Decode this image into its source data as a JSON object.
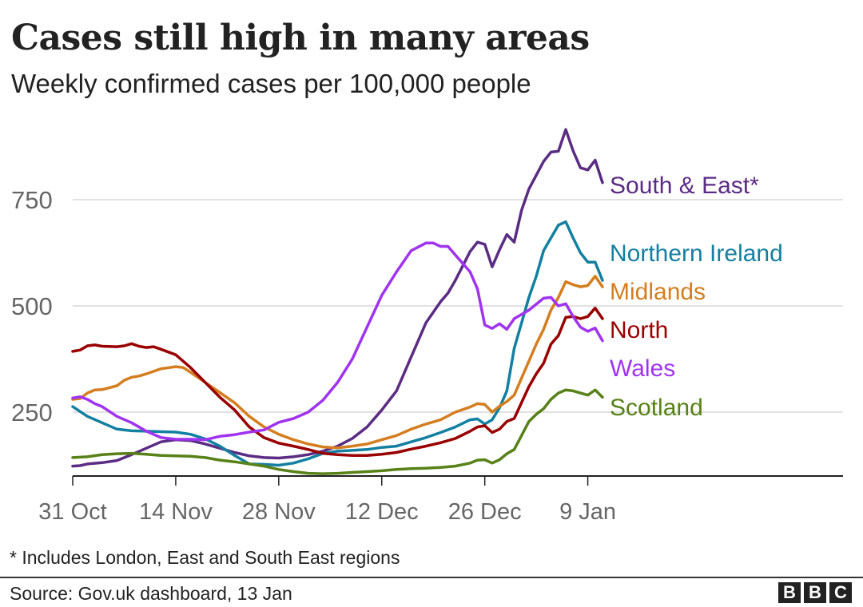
{
  "chart_data": {
    "type": "line",
    "title": "Cases still high in many areas",
    "subtitle": "Weekly confirmed cases per 100,000 people",
    "ylabel": "",
    "xlabel": "",
    "ylim": [
      100,
      950
    ],
    "yticks": [
      250,
      500,
      750
    ],
    "ytick_labels": [
      "250",
      "500",
      "750"
    ],
    "x_range": [
      0,
      73
    ],
    "xticks": [
      0,
      14,
      28,
      42,
      56,
      70
    ],
    "xtick_labels": [
      "31 Oct",
      "14 Nov",
      "28 Nov",
      "12 Dec",
      "26 Dec",
      "9 Jan"
    ],
    "grid": "horizontal",
    "series": [
      {
        "name": "South & East*",
        "label": "South & East*",
        "color": "#5b2c83",
        "points": [
          [
            0,
            123
          ],
          [
            1,
            124
          ],
          [
            2,
            128
          ],
          [
            4,
            131
          ],
          [
            6,
            136
          ],
          [
            8,
            150
          ],
          [
            10,
            165
          ],
          [
            12,
            180
          ],
          [
            14,
            185
          ],
          [
            16,
            183
          ],
          [
            18,
            175
          ],
          [
            20,
            165
          ],
          [
            22,
            155
          ],
          [
            24,
            147
          ],
          [
            26,
            143
          ],
          [
            28,
            142
          ],
          [
            30,
            145
          ],
          [
            32,
            150
          ],
          [
            34,
            158
          ],
          [
            36,
            170
          ],
          [
            38,
            188
          ],
          [
            40,
            215
          ],
          [
            42,
            255
          ],
          [
            44,
            300
          ],
          [
            46,
            380
          ],
          [
            48,
            460
          ],
          [
            50,
            510
          ],
          [
            51,
            530
          ],
          [
            52,
            560
          ],
          [
            54,
            628
          ],
          [
            55,
            650
          ],
          [
            56,
            645
          ],
          [
            57,
            592
          ],
          [
            58,
            632
          ],
          [
            59,
            668
          ],
          [
            60,
            650
          ],
          [
            61,
            725
          ],
          [
            62,
            775
          ],
          [
            64,
            840
          ],
          [
            65,
            862
          ],
          [
            66,
            864
          ],
          [
            67,
            915
          ],
          [
            68,
            865
          ],
          [
            69,
            825
          ],
          [
            70,
            820
          ],
          [
            71,
            843
          ],
          [
            72,
            790
          ]
        ]
      },
      {
        "name": "Northern Ireland",
        "label": "Northern Ireland",
        "color": "#1380a1",
        "points": [
          [
            0,
            263
          ],
          [
            2,
            240
          ],
          [
            4,
            225
          ],
          [
            6,
            210
          ],
          [
            8,
            206
          ],
          [
            10,
            205
          ],
          [
            12,
            204
          ],
          [
            14,
            203
          ],
          [
            16,
            198
          ],
          [
            18,
            187
          ],
          [
            20,
            170
          ],
          [
            22,
            148
          ],
          [
            24,
            128
          ],
          [
            26,
            127
          ],
          [
            28,
            125
          ],
          [
            30,
            130
          ],
          [
            32,
            140
          ],
          [
            34,
            153
          ],
          [
            36,
            158
          ],
          [
            38,
            160
          ],
          [
            40,
            162
          ],
          [
            42,
            167
          ],
          [
            44,
            170
          ],
          [
            46,
            180
          ],
          [
            48,
            190
          ],
          [
            50,
            202
          ],
          [
            52,
            215
          ],
          [
            54,
            232
          ],
          [
            55,
            234
          ],
          [
            56,
            222
          ],
          [
            57,
            232
          ],
          [
            58,
            260
          ],
          [
            59,
            300
          ],
          [
            60,
            400
          ],
          [
            62,
            520
          ],
          [
            63,
            570
          ],
          [
            64,
            630
          ],
          [
            65,
            660
          ],
          [
            66,
            690
          ],
          [
            67,
            698
          ],
          [
            68,
            660
          ],
          [
            69,
            625
          ],
          [
            70,
            603
          ],
          [
            71,
            603
          ],
          [
            72,
            560
          ]
        ]
      },
      {
        "name": "Midlands",
        "label": "Midlands",
        "color": "#d47e1f",
        "points": [
          [
            0,
            280
          ],
          [
            1,
            282
          ],
          [
            2,
            295
          ],
          [
            3,
            302
          ],
          [
            4,
            303
          ],
          [
            6,
            312
          ],
          [
            7,
            325
          ],
          [
            8,
            332
          ],
          [
            9,
            335
          ],
          [
            10,
            340
          ],
          [
            12,
            352
          ],
          [
            14,
            357
          ],
          [
            15,
            355
          ],
          [
            16,
            344
          ],
          [
            18,
            320
          ],
          [
            20,
            296
          ],
          [
            22,
            272
          ],
          [
            24,
            240
          ],
          [
            26,
            215
          ],
          [
            28,
            198
          ],
          [
            30,
            185
          ],
          [
            32,
            175
          ],
          [
            34,
            168
          ],
          [
            36,
            166
          ],
          [
            38,
            170
          ],
          [
            40,
            175
          ],
          [
            42,
            185
          ],
          [
            44,
            195
          ],
          [
            46,
            210
          ],
          [
            48,
            222
          ],
          [
            50,
            232
          ],
          [
            52,
            250
          ],
          [
            54,
            262
          ],
          [
            55,
            270
          ],
          [
            56,
            268
          ],
          [
            57,
            250
          ],
          [
            58,
            264
          ],
          [
            59,
            275
          ],
          [
            60,
            290
          ],
          [
            62,
            370
          ],
          [
            63,
            410
          ],
          [
            64,
            445
          ],
          [
            65,
            490
          ],
          [
            66,
            520
          ],
          [
            67,
            557
          ],
          [
            68,
            550
          ],
          [
            69,
            545
          ],
          [
            70,
            548
          ],
          [
            71,
            570
          ],
          [
            72,
            545
          ]
        ]
      },
      {
        "name": "North",
        "label": "North",
        "color": "#990000",
        "points": [
          [
            0,
            393
          ],
          [
            1,
            396
          ],
          [
            2,
            406
          ],
          [
            3,
            408
          ],
          [
            4,
            405
          ],
          [
            6,
            404
          ],
          [
            7,
            406
          ],
          [
            8,
            411
          ],
          [
            9,
            405
          ],
          [
            10,
            402
          ],
          [
            11,
            404
          ],
          [
            12,
            398
          ],
          [
            14,
            385
          ],
          [
            16,
            355
          ],
          [
            18,
            320
          ],
          [
            20,
            285
          ],
          [
            22,
            255
          ],
          [
            24,
            215
          ],
          [
            26,
            190
          ],
          [
            28,
            177
          ],
          [
            30,
            170
          ],
          [
            32,
            162
          ],
          [
            34,
            153
          ],
          [
            36,
            150
          ],
          [
            38,
            148
          ],
          [
            40,
            148
          ],
          [
            42,
            151
          ],
          [
            44,
            155
          ],
          [
            46,
            163
          ],
          [
            48,
            170
          ],
          [
            50,
            178
          ],
          [
            52,
            188
          ],
          [
            54,
            205
          ],
          [
            55,
            215
          ],
          [
            56,
            218
          ],
          [
            57,
            202
          ],
          [
            58,
            210
          ],
          [
            59,
            228
          ],
          [
            60,
            235
          ],
          [
            62,
            310
          ],
          [
            63,
            340
          ],
          [
            64,
            365
          ],
          [
            65,
            410
          ],
          [
            66,
            430
          ],
          [
            67,
            473
          ],
          [
            68,
            475
          ],
          [
            69,
            470
          ],
          [
            70,
            475
          ],
          [
            71,
            495
          ],
          [
            72,
            470
          ]
        ]
      },
      {
        "name": "Wales",
        "label": "Wales",
        "color": "#a034f0",
        "points": [
          [
            0,
            283
          ],
          [
            1,
            286
          ],
          [
            2,
            280
          ],
          [
            3,
            270
          ],
          [
            4,
            263
          ],
          [
            6,
            240
          ],
          [
            8,
            225
          ],
          [
            10,
            205
          ],
          [
            12,
            190
          ],
          [
            14,
            186
          ],
          [
            16,
            186
          ],
          [
            18,
            185
          ],
          [
            20,
            193
          ],
          [
            22,
            197
          ],
          [
            24,
            203
          ],
          [
            26,
            208
          ],
          [
            28,
            226
          ],
          [
            30,
            235
          ],
          [
            32,
            250
          ],
          [
            34,
            278
          ],
          [
            36,
            320
          ],
          [
            38,
            375
          ],
          [
            40,
            450
          ],
          [
            42,
            525
          ],
          [
            44,
            580
          ],
          [
            46,
            630
          ],
          [
            48,
            648
          ],
          [
            49,
            648
          ],
          [
            50,
            640
          ],
          [
            51,
            640
          ],
          [
            52,
            620
          ],
          [
            54,
            580
          ],
          [
            55,
            540
          ],
          [
            56,
            455
          ],
          [
            57,
            447
          ],
          [
            58,
            458
          ],
          [
            59,
            445
          ],
          [
            60,
            470
          ],
          [
            62,
            490
          ],
          [
            64,
            518
          ],
          [
            65,
            520
          ],
          [
            66,
            500
          ],
          [
            67,
            505
          ],
          [
            68,
            475
          ],
          [
            69,
            450
          ],
          [
            70,
            440
          ],
          [
            71,
            448
          ],
          [
            72,
            418
          ]
        ]
      },
      {
        "name": "Scotland",
        "label": "Scotland",
        "color": "#588118",
        "points": [
          [
            0,
            143
          ],
          [
            2,
            145
          ],
          [
            4,
            150
          ],
          [
            6,
            152
          ],
          [
            8,
            153
          ],
          [
            10,
            151
          ],
          [
            12,
            148
          ],
          [
            14,
            147
          ],
          [
            16,
            146
          ],
          [
            18,
            143
          ],
          [
            20,
            137
          ],
          [
            22,
            133
          ],
          [
            24,
            128
          ],
          [
            26,
            123
          ],
          [
            28,
            115
          ],
          [
            30,
            110
          ],
          [
            32,
            106
          ],
          [
            34,
            105
          ],
          [
            36,
            106
          ],
          [
            38,
            108
          ],
          [
            40,
            110
          ],
          [
            42,
            112
          ],
          [
            44,
            115
          ],
          [
            46,
            117
          ],
          [
            48,
            118
          ],
          [
            50,
            120
          ],
          [
            52,
            123
          ],
          [
            54,
            130
          ],
          [
            55,
            137
          ],
          [
            56,
            138
          ],
          [
            57,
            130
          ],
          [
            58,
            138
          ],
          [
            59,
            152
          ],
          [
            60,
            162
          ],
          [
            61,
            195
          ],
          [
            62,
            228
          ],
          [
            63,
            245
          ],
          [
            64,
            258
          ],
          [
            65,
            280
          ],
          [
            66,
            295
          ],
          [
            67,
            302
          ],
          [
            68,
            300
          ],
          [
            69,
            295
          ],
          [
            70,
            290
          ],
          [
            71,
            302
          ],
          [
            72,
            285
          ]
        ]
      }
    ],
    "footnote": "* Includes London, East and South East regions",
    "source": "Source: Gov.uk dashboard, 13 Jan"
  },
  "brand": {
    "letters": [
      "B",
      "B",
      "C"
    ]
  },
  "colors": {
    "text": "#222222",
    "axis_text": "#666666",
    "grid": "#d9d9d9",
    "baseline": "#222222"
  }
}
